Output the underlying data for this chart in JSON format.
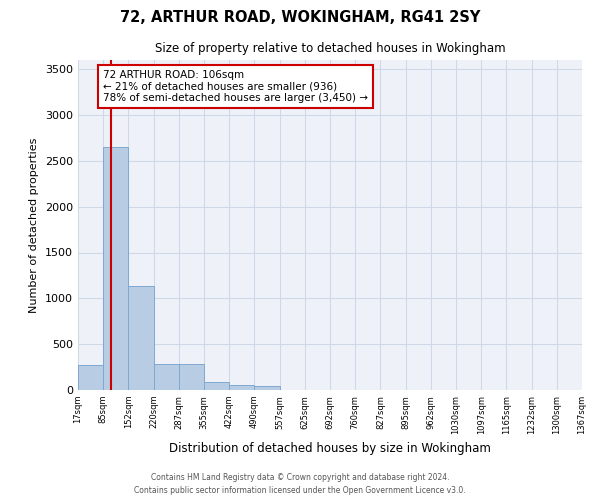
{
  "title": "72, ARTHUR ROAD, WOKINGHAM, RG41 2SY",
  "subtitle": "Size of property relative to detached houses in Wokingham",
  "xlabel": "Distribution of detached houses by size in Wokingham",
  "ylabel": "Number of detached properties",
  "bin_labels": [
    "17sqm",
    "85sqm",
    "152sqm",
    "220sqm",
    "287sqm",
    "355sqm",
    "422sqm",
    "490sqm",
    "557sqm",
    "625sqm",
    "692sqm",
    "760sqm",
    "827sqm",
    "895sqm",
    "962sqm",
    "1030sqm",
    "1097sqm",
    "1165sqm",
    "1232sqm",
    "1300sqm",
    "1367sqm"
  ],
  "bar_heights": [
    270,
    2650,
    1140,
    280,
    280,
    90,
    60,
    40,
    0,
    0,
    0,
    0,
    0,
    0,
    0,
    0,
    0,
    0,
    0,
    0
  ],
  "bar_color": "#b8cce4",
  "bar_edge_color": "#7fa8d1",
  "property_sqm": 106,
  "annotation_text": "72 ARTHUR ROAD: 106sqm\n← 21% of detached houses are smaller (936)\n78% of semi-detached houses are larger (3,450) →",
  "annotation_box_color": "#ffffff",
  "annotation_box_edge_color": "#cc0000",
  "property_line_color": "#cc0000",
  "ylim": [
    0,
    3600
  ],
  "yticks": [
    0,
    500,
    1000,
    1500,
    2000,
    2500,
    3000,
    3500
  ],
  "grid_color": "#d0d8e8",
  "bg_color": "#eef2f8",
  "footer_line1": "Contains HM Land Registry data © Crown copyright and database right 2024.",
  "footer_line2": "Contains public sector information licensed under the Open Government Licence v3.0."
}
